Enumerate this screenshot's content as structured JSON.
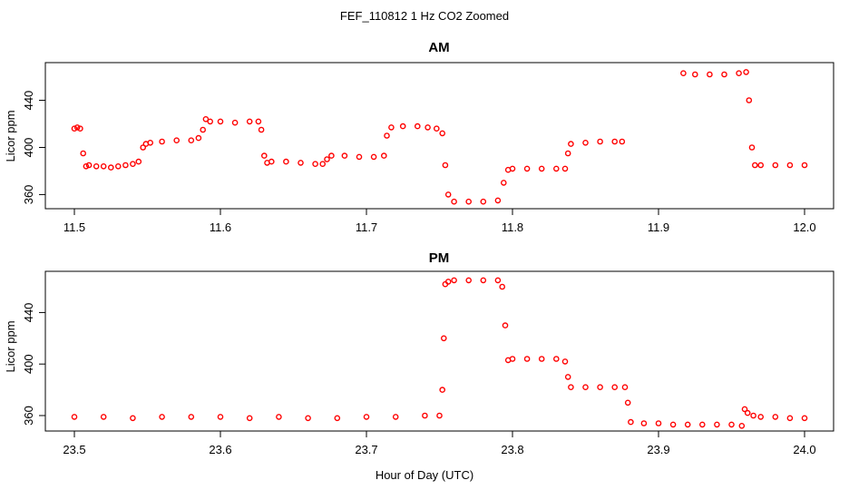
{
  "figure": {
    "title": "FEF_110812  1 Hz CO2 Zoomed",
    "xlabel": "Hour of Day (UTC)"
  },
  "chart_data": [
    {
      "type": "scatter",
      "title": "AM",
      "xlabel": "Hour of Day (UTC)",
      "ylabel": "Licor ppm",
      "xlim": [
        11.5,
        12.0
      ],
      "ylim": [
        348,
        472
      ],
      "xticks": [
        "11.5",
        "11.6",
        "11.7",
        "11.8",
        "11.9",
        "12.0"
      ],
      "yticks": [
        "360",
        "400",
        "440"
      ],
      "marker_color": "#ff0000",
      "series": [
        {
          "x": [
            11.5,
            11.502,
            11.504,
            11.506,
            11.508,
            11.51,
            11.515,
            11.52,
            11.525,
            11.53,
            11.535,
            11.54,
            11.544,
            11.547,
            11.549,
            11.552,
            11.56,
            11.57,
            11.58,
            11.585,
            11.588,
            11.59,
            11.593,
            11.6,
            11.61,
            11.62,
            11.626,
            11.628,
            11.63,
            11.632,
            11.635,
            11.645,
            11.655,
            11.665,
            11.67,
            11.673,
            11.676,
            11.685,
            11.695,
            11.705,
            11.712,
            11.714,
            11.717,
            11.725,
            11.735,
            11.742,
            11.748,
            11.752,
            11.754,
            11.756,
            11.76,
            11.77,
            11.78,
            11.79,
            11.794,
            11.797,
            11.8,
            11.81,
            11.82,
            11.83,
            11.836,
            11.838,
            11.84,
            11.85,
            11.86,
            11.87,
            11.875,
            11.917,
            11.925,
            11.935,
            11.945,
            11.955,
            11.96,
            11.962,
            11.964,
            11.966,
            11.97,
            11.98,
            11.99,
            12.0
          ],
          "y": [
            416,
            417,
            416,
            395,
            384,
            385,
            384,
            384,
            383,
            384,
            385,
            386,
            388,
            400,
            403,
            404,
            405,
            406,
            406,
            408,
            415,
            424,
            422,
            422,
            421,
            422,
            422,
            415,
            393,
            387,
            388,
            388,
            387,
            386,
            386,
            390,
            393,
            393,
            392,
            392,
            393,
            410,
            417,
            418,
            418,
            417,
            416,
            412,
            385,
            360,
            354,
            354,
            354,
            355,
            370,
            381,
            382,
            382,
            382,
            382,
            382,
            395,
            403,
            404,
            405,
            405,
            405,
            463,
            462,
            462,
            462,
            463,
            464,
            440,
            400,
            385,
            385,
            385,
            385,
            385
          ]
        }
      ]
    },
    {
      "type": "scatter",
      "title": "PM",
      "xlabel": "Hour of Day (UTC)",
      "ylabel": "Licor ppm",
      "xlim": [
        23.5,
        24.0
      ],
      "ylim": [
        348,
        472
      ],
      "xticks": [
        "23.5",
        "23.6",
        "23.7",
        "23.8",
        "23.9",
        "24.0"
      ],
      "yticks": [
        "360",
        "400",
        "440"
      ],
      "marker_color": "#ff0000",
      "series": [
        {
          "x": [
            23.5,
            23.52,
            23.54,
            23.56,
            23.58,
            23.6,
            23.62,
            23.64,
            23.66,
            23.68,
            23.7,
            23.72,
            23.74,
            23.75,
            23.752,
            23.753,
            23.754,
            23.756,
            23.76,
            23.77,
            23.78,
            23.79,
            23.793,
            23.795,
            23.797,
            23.8,
            23.81,
            23.82,
            23.83,
            23.836,
            23.838,
            23.84,
            23.85,
            23.86,
            23.87,
            23.877,
            23.879,
            23.881,
            23.89,
            23.9,
            23.91,
            23.92,
            23.93,
            23.94,
            23.95,
            23.957,
            23.959,
            23.961,
            23.965,
            23.97,
            23.98,
            23.99,
            24.0
          ],
          "y": [
            359,
            359,
            358,
            359,
            359,
            359,
            358,
            359,
            358,
            358,
            359,
            359,
            360,
            360,
            380,
            420,
            462,
            464,
            465,
            465,
            465,
            465,
            460,
            430,
            403,
            404,
            404,
            404,
            404,
            402,
            390,
            382,
            382,
            382,
            382,
            382,
            370,
            355,
            354,
            354,
            353,
            353,
            353,
            353,
            353,
            352,
            365,
            362,
            360,
            359,
            359,
            358,
            358
          ]
        }
      ]
    }
  ]
}
